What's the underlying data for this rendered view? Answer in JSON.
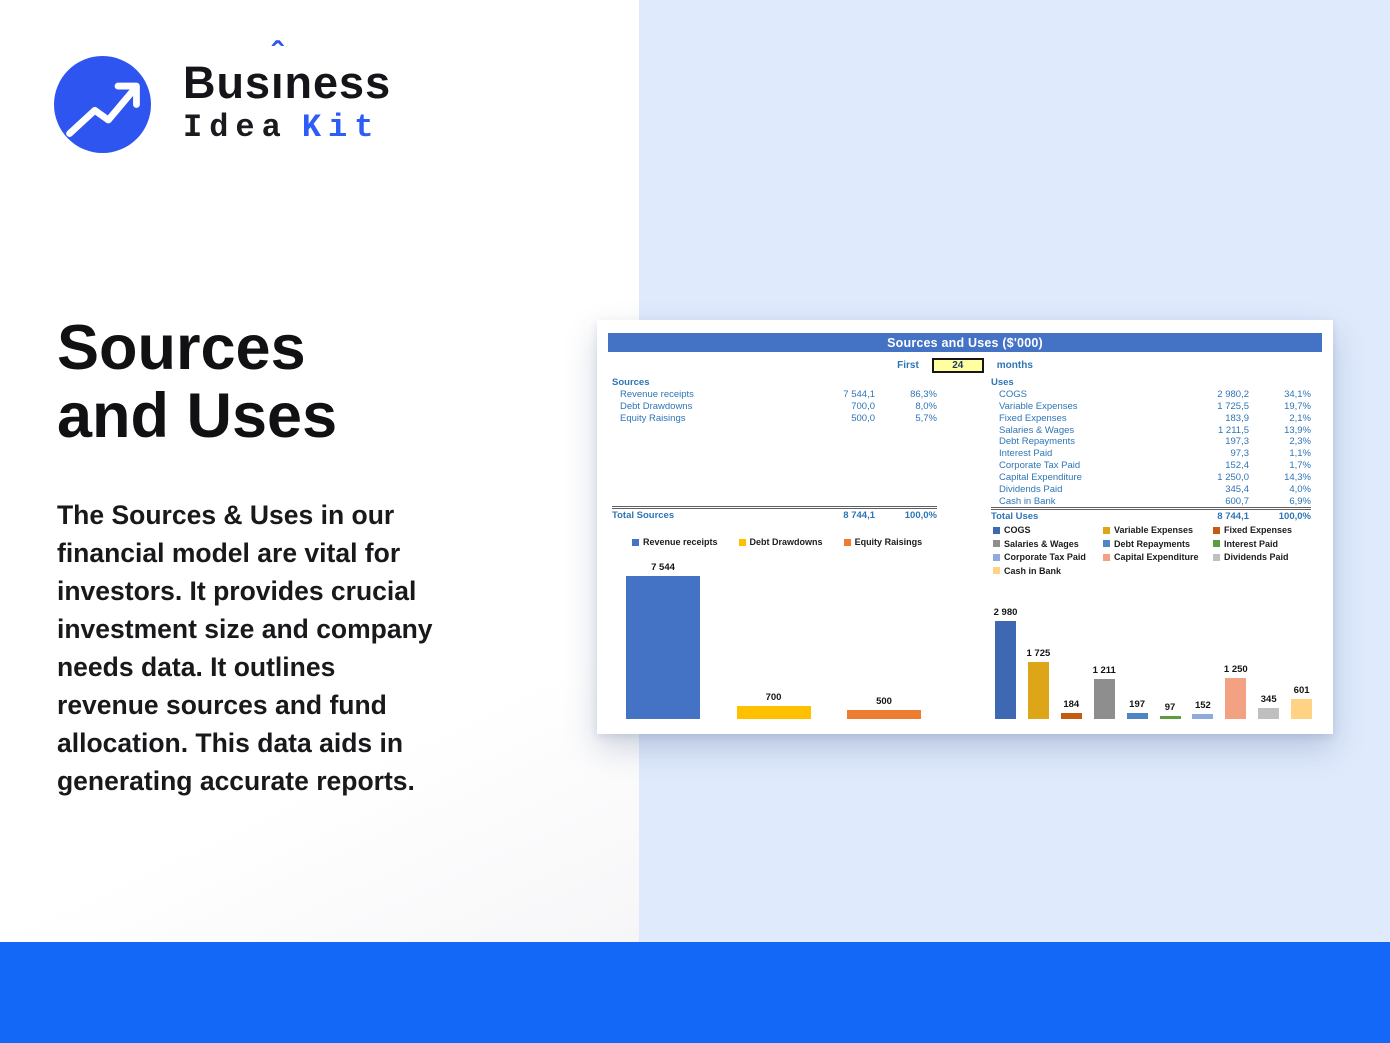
{
  "logo": {
    "brand": "Business",
    "brand_parts": {
      "pre": "Bus",
      "i": "ı",
      "post": "ness"
    },
    "caret": "ˆ",
    "line2_left": "Idea",
    "line2_right": "Kit",
    "accent_color": "#2e55ef"
  },
  "hero": {
    "title_line1": "Sources",
    "title_line2": "and Uses",
    "description": "The Sources & Uses in our\nfinancial model are vital for\ninvestors. It provides crucial\ninvestment size and company\nneeds data. It outlines\nrevenue sources and fund\nallocation. This data aids in\ngenerating accurate reports."
  },
  "card": {
    "title": "Sources and Uses ($'000)",
    "period": {
      "prefix": "First",
      "value": "24",
      "suffix": "months"
    },
    "sources": {
      "header": "Sources",
      "rows": [
        {
          "label": "Revenue receipts",
          "value": "7 544,1",
          "pct": "86,3%"
        },
        {
          "label": "Debt Drawdowns",
          "value": "700,0",
          "pct": "8,0%"
        },
        {
          "label": "Equity Raisings",
          "value": "500,0",
          "pct": "5,7%"
        }
      ],
      "total": {
        "label": "Total Sources",
        "value": "8 744,1",
        "pct": "100,0%"
      }
    },
    "uses": {
      "header": "Uses",
      "rows": [
        {
          "label": "COGS",
          "value": "2 980,2",
          "pct": "34,1%"
        },
        {
          "label": "Variable Expenses",
          "value": "1 725,5",
          "pct": "19,7%"
        },
        {
          "label": "Fixed Expenses",
          "value": "183,9",
          "pct": "2,1%"
        },
        {
          "label": "Salaries & Wages",
          "value": "1 211,5",
          "pct": "13,9%"
        },
        {
          "label": "Debt Repayments",
          "value": "197,3",
          "pct": "2,3%"
        },
        {
          "label": "Interest Paid",
          "value": "97,3",
          "pct": "1,1%"
        },
        {
          "label": "Corporate Tax Paid",
          "value": "152,4",
          "pct": "1,7%"
        },
        {
          "label": "Capital Expenditure",
          "value": "1 250,0",
          "pct": "14,3%"
        },
        {
          "label": "Dividends Paid",
          "value": "345,4",
          "pct": "4,0%"
        },
        {
          "label": "Cash in Bank",
          "value": "600,7",
          "pct": "6,9%"
        }
      ],
      "total": {
        "label": "Total Uses",
        "value": "8 744,1",
        "pct": "100,0%"
      }
    }
  },
  "chart_data": [
    {
      "type": "bar",
      "title": "Sources",
      "legend_position": "top",
      "grid": false,
      "ylim": [
        0,
        8000
      ],
      "series": [
        {
          "name": "Revenue receipts",
          "value": 7544.1,
          "label": "7 544",
          "color": "#4472c4"
        },
        {
          "name": "Debt Drawdowns",
          "value": 700.0,
          "label": "700",
          "color": "#ffc000"
        },
        {
          "name": "Equity Raisings",
          "value": 500.0,
          "label": "500",
          "color": "#ed7d31"
        }
      ]
    },
    {
      "type": "bar",
      "title": "Uses",
      "legend_position": "top",
      "grid": false,
      "ylim": [
        0,
        3200
      ],
      "series": [
        {
          "name": "COGS",
          "value": 2980.2,
          "label": "2 980",
          "color": "#3e68b1"
        },
        {
          "name": "Variable Expenses",
          "value": 1725.5,
          "label": "1 725",
          "color": "#dda619"
        },
        {
          "name": "Fixed Expenses",
          "value": 183.9,
          "label": "184",
          "color": "#c55a11"
        },
        {
          "name": "Salaries & Wages",
          "value": 1211.5,
          "label": "1 211",
          "color": "#8e8e8e"
        },
        {
          "name": "Debt Repayments",
          "value": 197.3,
          "label": "197",
          "color": "#4e86c4"
        },
        {
          "name": "Interest Paid",
          "value": 97.3,
          "label": "97",
          "color": "#5b9e3d"
        },
        {
          "name": "Corporate Tax Paid",
          "value": 152.4,
          "label": "152",
          "color": "#8faadc"
        },
        {
          "name": "Capital Expenditure",
          "value": 1250.0,
          "label": "1 250",
          "color": "#f2a183"
        },
        {
          "name": "Dividends Paid",
          "value": 345.4,
          "label": "345",
          "color": "#bfbfbf"
        },
        {
          "name": "Cash in Bank",
          "value": 600.7,
          "label": "601",
          "color": "#ffd383"
        }
      ]
    }
  ],
  "colors": {
    "title_bar": "#4472c4",
    "table_text": "#2e75b6",
    "right_panel": "#dfeafc",
    "bottom_bar": "#1468f7",
    "input_bg": "#ffffa0"
  }
}
